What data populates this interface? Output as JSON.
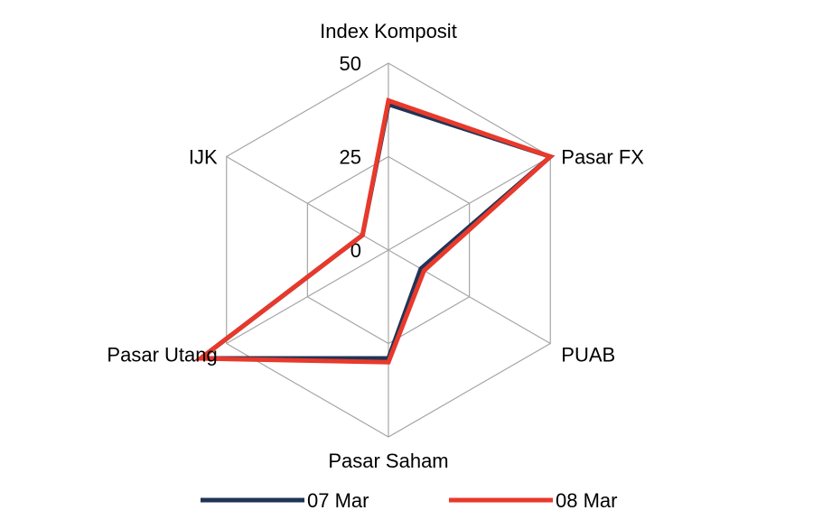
{
  "chart_data": {
    "type": "radar",
    "categories": [
      "Index Komposit",
      "Pasar FX",
      "PUAB",
      "Pasar Saham",
      "Pasar Utang",
      "IJK"
    ],
    "ticks": [
      "0",
      "25",
      "50"
    ],
    "rlim": [
      0,
      50
    ],
    "grid": true,
    "series": [
      {
        "name": "07 Mar",
        "color": "#1f3557",
        "values": [
          39,
          50,
          10,
          29,
          58,
          8
        ]
      },
      {
        "name": "08 Mar",
        "color": "#e8392b",
        "values": [
          40,
          50,
          11,
          30,
          58,
          8
        ]
      }
    ],
    "legend_position": "bottom"
  }
}
